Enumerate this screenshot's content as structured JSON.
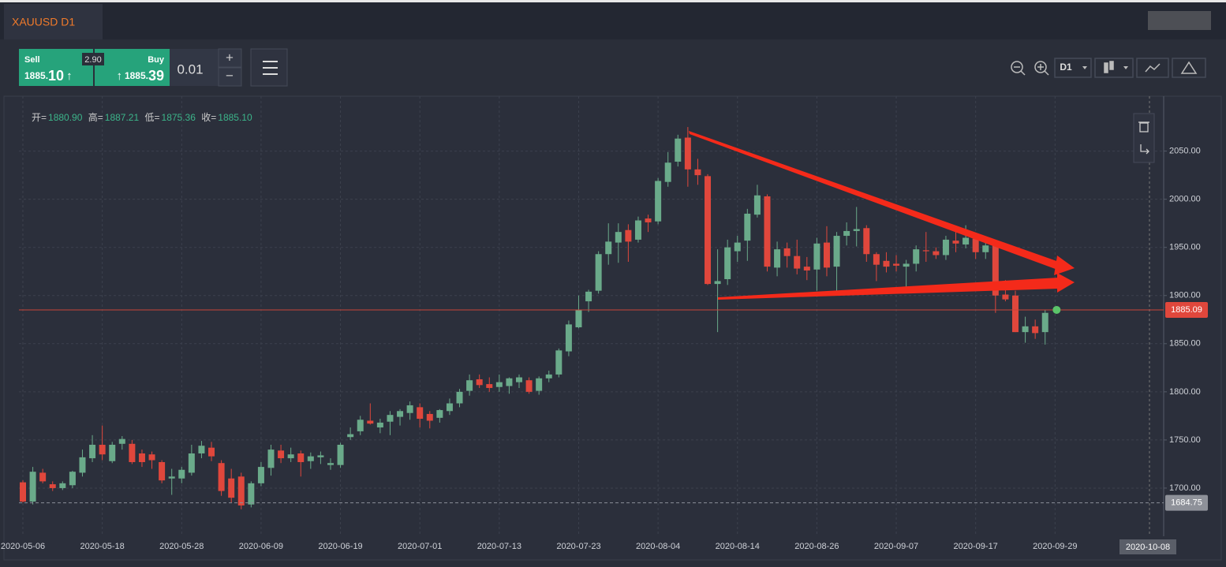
{
  "toolbar": {
    "tab": "XAUUSD D1",
    "sell_label": "Sell",
    "sell_price_main": "1885.",
    "sell_price_big": "10",
    "sell_arrow": "↑",
    "buy_label": "Buy",
    "buy_arrow": "↑",
    "buy_price_main": "1885.",
    "buy_price_big": "39",
    "spread": "2.90",
    "lot": "0.01",
    "plus": "+",
    "minus": "−",
    "timeframe": "D1"
  },
  "quote": {
    "open_label": "开=",
    "open": "1880.90",
    "high_label": "高=",
    "high": "1887.21",
    "low_label": "低=",
    "low": "1875.36",
    "close_label": "收=",
    "close": "1885.10"
  },
  "chart_data": {
    "type": "candlestick",
    "categories": [
      "2020-05-06",
      null,
      null,
      null,
      null,
      null,
      null,
      null,
      "2020-05-18",
      null,
      null,
      null,
      null,
      null,
      null,
      null,
      "2020-05-28",
      null,
      null,
      null,
      null,
      null,
      null,
      null,
      "2020-06-09",
      null,
      null,
      null,
      null,
      null,
      null,
      null,
      "2020-06-19",
      null,
      null,
      null,
      null,
      null,
      null,
      null,
      "2020-07-01",
      null,
      null,
      null,
      null,
      null,
      null,
      null,
      "2020-07-13",
      null,
      null,
      null,
      null,
      null,
      null,
      null,
      "2020-07-23",
      null,
      null,
      null,
      null,
      null,
      null,
      null,
      "2020-08-04",
      null,
      null,
      null,
      null,
      null,
      null,
      null,
      "2020-08-14",
      null,
      null,
      null,
      null,
      null,
      null,
      null,
      "2020-08-26",
      null,
      null,
      null,
      null,
      null,
      null,
      null,
      "2020-09-07",
      null,
      null,
      null,
      null,
      null,
      null,
      null,
      "2020-09-17",
      null,
      null,
      null,
      null,
      null,
      null,
      null,
      "2020-09-29"
    ],
    "open": [
      1706,
      1686,
      1716,
      1704,
      1700,
      1703,
      1716,
      1731,
      1745,
      1728,
      1746,
      1746,
      1736,
      1735,
      1727,
      1710,
      1710,
      1716,
      1736,
      1742,
      1726,
      1710,
      1712,
      1683,
      1705,
      1721,
      1739,
      1731,
      1736,
      1728,
      1732,
      1724,
      1724,
      1753,
      1759,
      1770,
      1763,
      1769,
      1774,
      1778,
      1784,
      1777,
      1773,
      1780,
      1788,
      1801,
      1813,
      1808,
      1805,
      1806,
      1810,
      1812,
      1801,
      1814,
      1818,
      1842,
      1867,
      1894,
      1905,
      1943,
      1955,
      1968,
      1958,
      1980,
      1977,
      2018,
      2039,
      2064,
      2031,
      2024,
      1912,
      1917,
      1946,
      1957,
      1984,
      2003,
      1929,
      1949,
      1941,
      1930,
      1927,
      1955,
      1930,
      1962,
      1967,
      1970,
      1943,
      1936,
      1933,
      1930,
      1933,
      1947,
      1946,
      1942,
      1957,
      1953,
      1959,
      1945,
      1952,
      1901,
      1900,
      1862,
      1868,
      1862,
      null
    ],
    "high": [
      1708,
      1722,
      1720,
      1707,
      1707,
      1718,
      1740,
      1755,
      1765,
      1748,
      1754,
      1750,
      1740,
      1738,
      1729,
      1720,
      1722,
      1745,
      1749,
      1748,
      1729,
      1720,
      1716,
      1707,
      1727,
      1745,
      1745,
      1742,
      1739,
      1737,
      1738,
      1731,
      1747,
      1763,
      1775,
      1788,
      1772,
      1780,
      1782,
      1790,
      1788,
      1780,
      1782,
      1793,
      1803,
      1818,
      1818,
      1815,
      1818,
      1815,
      1818,
      1815,
      1816,
      1822,
      1845,
      1874,
      1900,
      1906,
      1946,
      1975,
      1975,
      1974,
      1982,
      1984,
      2022,
      2049,
      2067,
      2075,
      2042,
      2026,
      1948,
      1958,
      1962,
      1990,
      2015,
      2005,
      1956,
      1955,
      1958,
      1940,
      1960,
      1972,
      1966,
      1976,
      1992,
      1973,
      1945,
      1945,
      1942,
      1937,
      1952,
      1966,
      1950,
      1962,
      1968,
      1973,
      1963,
      1956,
      1954,
      1916,
      1905,
      1878,
      1875,
      1885,
      null
    ],
    "low": [
      1685,
      1683,
      1705,
      1697,
      1698,
      1700,
      1712,
      1727,
      1729,
      1726,
      1740,
      1725,
      1722,
      1720,
      1705,
      1693,
      1705,
      1713,
      1731,
      1728,
      1692,
      1685,
      1678,
      1680,
      1702,
      1713,
      1726,
      1727,
      1712,
      1720,
      1725,
      1719,
      1721,
      1750,
      1755,
      1766,
      1757,
      1755,
      1765,
      1771,
      1763,
      1762,
      1768,
      1776,
      1784,
      1796,
      1804,
      1800,
      1800,
      1798,
      1804,
      1798,
      1797,
      1810,
      1815,
      1837,
      1866,
      1883,
      1902,
      1932,
      1934,
      1935,
      1955,
      1966,
      1974,
      2013,
      2034,
      2013,
      2015,
      1911,
      1862,
      1911,
      1935,
      1936,
      1981,
      1925,
      1920,
      1929,
      1922,
      1916,
      1905,
      1920,
      1905,
      1952,
      1951,
      1935,
      1915,
      1924,
      1925,
      1907,
      1925,
      1935,
      1938,
      1937,
      1945,
      1949,
      1938,
      1938,
      1882,
      1894,
      1862,
      1851,
      1855,
      1849,
      null
    ],
    "close": [
      1686,
      1717,
      1707,
      1700,
      1705,
      1717,
      1732,
      1745,
      1735,
      1745,
      1751,
      1727,
      1727,
      1729,
      1708,
      1712,
      1719,
      1736,
      1744,
      1733,
      1697,
      1690,
      1682,
      1705,
      1722,
      1740,
      1731,
      1735,
      1727,
      1733,
      1734,
      1726,
      1745,
      1756,
      1771,
      1767,
      1768,
      1776,
      1780,
      1786,
      1772,
      1770,
      1781,
      1788,
      1800,
      1812,
      1807,
      1804,
      1810,
      1814,
      1815,
      1800,
      1814,
      1818,
      1843,
      1870,
      1885,
      1904,
      1943,
      1956,
      1966,
      1956,
      1978,
      1976,
      2019,
      2038,
      2063,
      2031,
      2025,
      1912,
      1915,
      1950,
      1955,
      1985,
      2004,
      1930,
      1948,
      1941,
      1928,
      1926,
      1954,
      1929,
      1962,
      1967,
      1969,
      1943,
      1932,
      1930,
      1931,
      1933,
      1948,
      1946,
      1942,
      1958,
      1954,
      1960,
      1945,
      1952,
      1900,
      1896,
      1862,
      1868,
      1861,
      1882,
      null
    ],
    "up_color": "#6aaa8a",
    "down_color": "#e0473c",
    "ylim": [
      1650,
      2107
    ],
    "yticks": [
      {
        "value": 1700,
        "label": "1700.00"
      },
      {
        "value": 1750,
        "label": "1750.00"
      },
      {
        "value": 1800,
        "label": "1800.00"
      },
      {
        "value": 1850,
        "label": "1850.00"
      },
      {
        "value": 1900,
        "label": "1900.00"
      },
      {
        "value": 1950,
        "label": "1950.00"
      },
      {
        "value": 2000,
        "label": "2000.00"
      },
      {
        "value": 2050,
        "label": "2050.00"
      }
    ],
    "grid": true,
    "current_price": {
      "value": 1885.09,
      "label": "1885.09"
    },
    "low_line": {
      "value": 1684.75,
      "label": "1684.75"
    },
    "crosshair_label": "2020-10-08"
  }
}
